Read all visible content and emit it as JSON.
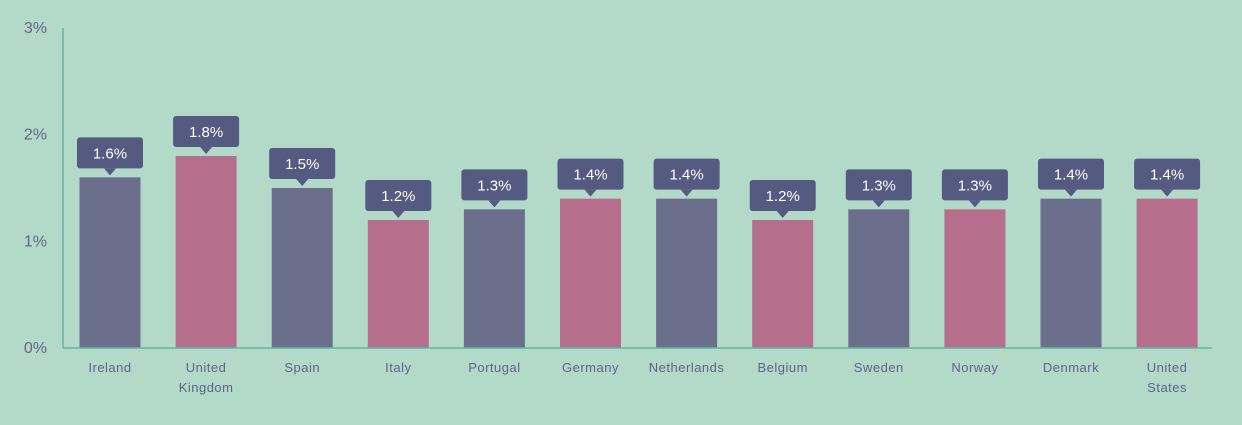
{
  "chart_data": {
    "type": "bar",
    "title": "",
    "xlabel": "",
    "ylabel": "",
    "ylim": [
      0,
      3
    ],
    "y_ticks": [
      {
        "value": 0,
        "label": "0%"
      },
      {
        "value": 1,
        "label": "1%"
      },
      {
        "value": 2,
        "label": "2%"
      },
      {
        "value": 3,
        "label": "3%"
      }
    ],
    "grid": false,
    "legend": "none",
    "categories": [
      "Ireland",
      "United Kingdom",
      "Spain",
      "Italy",
      "Portugal",
      "Germany",
      "Netherlands",
      "Belgium",
      "Sweden",
      "Norway",
      "Denmark",
      "United States"
    ],
    "values": [
      1.6,
      1.8,
      1.5,
      1.2,
      1.3,
      1.4,
      1.4,
      1.2,
      1.3,
      1.3,
      1.4,
      1.4
    ],
    "data_labels": [
      "1.6%",
      "1.8%",
      "1.5%",
      "1.2%",
      "1.3%",
      "1.4%",
      "1.4%",
      "1.2%",
      "1.3%",
      "1.3%",
      "1.4%",
      "1.4%"
    ],
    "bar_colors": [
      "#6b6f8c",
      "#b56e8c",
      "#6b6f8c",
      "#b56e8c",
      "#6b6f8c",
      "#b56e8c",
      "#6b6f8c",
      "#b56e8c",
      "#6b6f8c",
      "#b56e8c",
      "#6b6f8c",
      "#b56e8c"
    ],
    "callout_color": "#555a80",
    "axis_color": "#5fb8a0",
    "background_color": "#b3d9c8"
  }
}
